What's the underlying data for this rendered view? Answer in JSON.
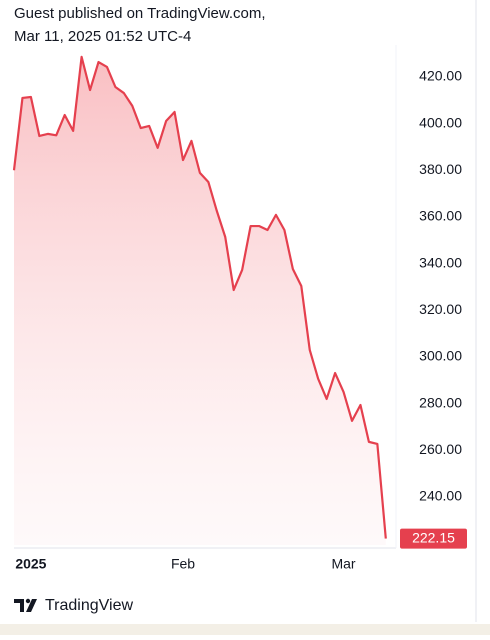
{
  "chart_data": {
    "type": "area",
    "title": "Guest published on TradingView.com,",
    "subtitle": "Mar 11, 2025 01:52 UTC-4",
    "brand": "TradingView",
    "color": "#e5404e",
    "grid": false,
    "categories": [
      null,
      null,
      "2025",
      null,
      null,
      null,
      null,
      null,
      null,
      null,
      null,
      null,
      null,
      null,
      null,
      null,
      null,
      null,
      null,
      null,
      "Feb",
      null,
      null,
      null,
      null,
      null,
      null,
      null,
      null,
      null,
      null,
      null,
      null,
      null,
      null,
      null,
      null,
      null,
      null,
      "Mar",
      null,
      null,
      null,
      null,
      null
    ],
    "values": [
      380,
      411,
      411.4,
      394.7,
      395.6,
      395,
      403.7,
      396.9,
      428.6,
      414.4,
      426.4,
      424.3,
      415.7,
      413.1,
      407.6,
      398.1,
      399,
      389.6,
      401.1,
      405,
      384.4,
      392.6,
      378.9,
      375,
      362.6,
      351.4,
      328.7,
      337.3,
      356.1,
      356.1,
      354.4,
      360.9,
      354.4,
      337.7,
      330.4,
      303,
      290.6,
      282,
      293.1,
      285,
      272.6,
      279.4,
      263.6,
      262.7,
      222.15
    ],
    "ylim": [
      219.4,
      433.7
    ],
    "yticks": [
      {
        "value": 240,
        "label": "240.00"
      },
      {
        "value": 260,
        "label": "260.00"
      },
      {
        "value": 280,
        "label": "280.00"
      },
      {
        "value": 300,
        "label": "300.00"
      },
      {
        "value": 320,
        "label": "320.00"
      },
      {
        "value": 340,
        "label": "340.00"
      },
      {
        "value": 360,
        "label": "360.00"
      },
      {
        "value": 380,
        "label": "380.00"
      },
      {
        "value": 400,
        "label": "400.00"
      },
      {
        "value": 420,
        "label": "420.00"
      }
    ]
  }
}
